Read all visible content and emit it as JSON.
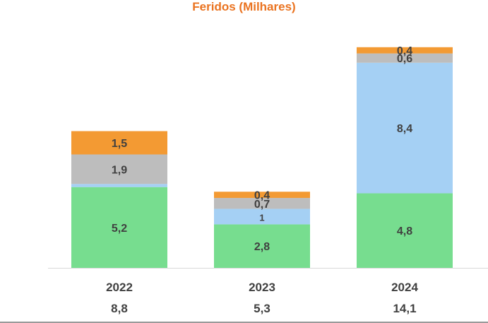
{
  "chart_data": {
    "type": "bar",
    "stacked": true,
    "title": "Feridos (Milhares)",
    "categories": [
      "2022",
      "2023",
      "2024"
    ],
    "totals": [
      "8,8",
      "5,3",
      "14,1"
    ],
    "series": [
      {
        "name": "green",
        "color": "#77dd8f",
        "values": [
          5.2,
          2.8,
          4.8
        ],
        "labels": [
          "5,2",
          "2,8",
          "4,8"
        ]
      },
      {
        "name": "blue",
        "color": "#a5d0f4",
        "values": [
          0.2,
          1,
          8.4
        ],
        "labels": [
          "",
          "1",
          "8,4"
        ]
      },
      {
        "name": "gray",
        "color": "#bdbdbd",
        "values": [
          1.9,
          0.7,
          0.6
        ],
        "labels": [
          "1,9",
          "0,7",
          "0,6"
        ]
      },
      {
        "name": "orange",
        "color": "#f39a33",
        "values": [
          1.5,
          0.4,
          0.4
        ],
        "labels": [
          "1,5",
          "0,4",
          "0,4"
        ]
      }
    ],
    "ylim": [
      0,
      14.1
    ],
    "xlabel": "",
    "ylabel": "",
    "title_color": "#ea7320",
    "label_color": "#404040",
    "axis_color": "#d9d9d9"
  }
}
